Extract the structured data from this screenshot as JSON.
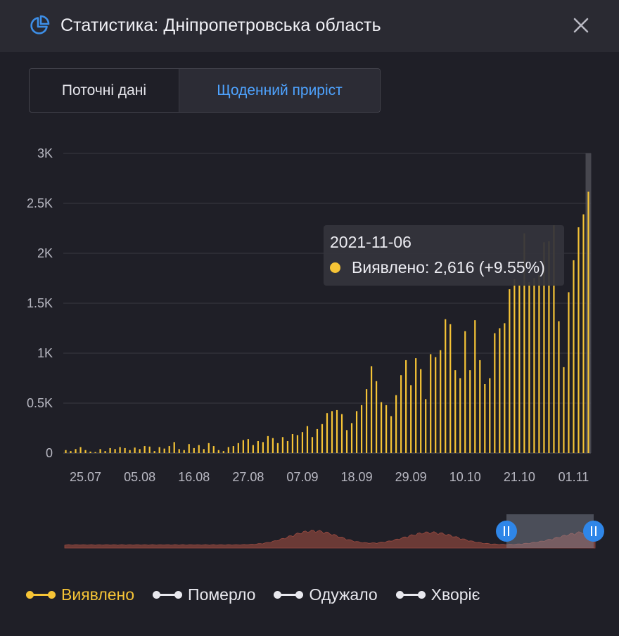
{
  "header": {
    "title": "Статистика: Дніпропетровська область",
    "icon": "pie-chart-icon",
    "close_icon": "close-icon"
  },
  "tabs": [
    {
      "label": "Поточні дані",
      "active": false
    },
    {
      "label": "Щоденний приріст",
      "active": true
    }
  ],
  "colors": {
    "accent": "#4ea3ff",
    "bar": "#f6c436",
    "navigator_fill": "#6b3a36",
    "background": "#1f1f27"
  },
  "tooltip": {
    "date": "2021-11-06",
    "text": "Виявлено: 2,616 (+9.55%)"
  },
  "legend": [
    {
      "label": "Виявлено",
      "color": "#f6c436",
      "active": true
    },
    {
      "label": "Померло",
      "color": "#e8e8ee",
      "active": false
    },
    {
      "label": "Одужало",
      "color": "#e8e8ee",
      "active": false
    },
    {
      "label": "Хворіє",
      "color": "#e8e8ee",
      "active": false
    }
  ],
  "chart_data": {
    "type": "bar",
    "series": [
      {
        "name": "Виявлено",
        "color": "#f6c436"
      }
    ],
    "ylim": [
      0,
      3000
    ],
    "y_ticks": [
      {
        "value": 0,
        "label": "0"
      },
      {
        "value": 500,
        "label": "0.5K"
      },
      {
        "value": 1000,
        "label": "1K"
      },
      {
        "value": 1500,
        "label": "1.5K"
      },
      {
        "value": 2000,
        "label": "2K"
      },
      {
        "value": 2500,
        "label": "2.5K"
      },
      {
        "value": 3000,
        "label": "3K"
      }
    ],
    "x_ticks": [
      "25.07",
      "05.08",
      "16.08",
      "27.08",
      "07.09",
      "18.09",
      "29.09",
      "10.10",
      "21.10",
      "01.11"
    ],
    "x_tick_index": [
      4,
      15,
      26,
      37,
      48,
      59,
      70,
      81,
      92,
      103
    ],
    "highlight_date": "2021-11-06",
    "highlight_value": 2616,
    "values": [
      30,
      20,
      40,
      60,
      30,
      15,
      10,
      40,
      20,
      50,
      40,
      60,
      50,
      30,
      55,
      40,
      70,
      65,
      20,
      60,
      45,
      70,
      110,
      40,
      30,
      90,
      50,
      80,
      40,
      100,
      70,
      30,
      20,
      60,
      70,
      100,
      130,
      140,
      80,
      120,
      110,
      170,
      150,
      100,
      160,
      120,
      190,
      180,
      210,
      270,
      160,
      240,
      290,
      400,
      420,
      430,
      390,
      230,
      300,
      420,
      480,
      640,
      870,
      720,
      510,
      480,
      370,
      580,
      780,
      930,
      680,
      950,
      840,
      540,
      990,
      960,
      1030,
      1340,
      1290,
      830,
      750,
      1220,
      830,
      1330,
      930,
      690,
      750,
      1200,
      1250,
      1300,
      1640,
      1740,
      1680,
      2200,
      1710,
      1750,
      1780,
      2110,
      2120,
      2280,
      1320,
      860,
      1610,
      1930,
      2260,
      2390,
      2616
    ]
  }
}
